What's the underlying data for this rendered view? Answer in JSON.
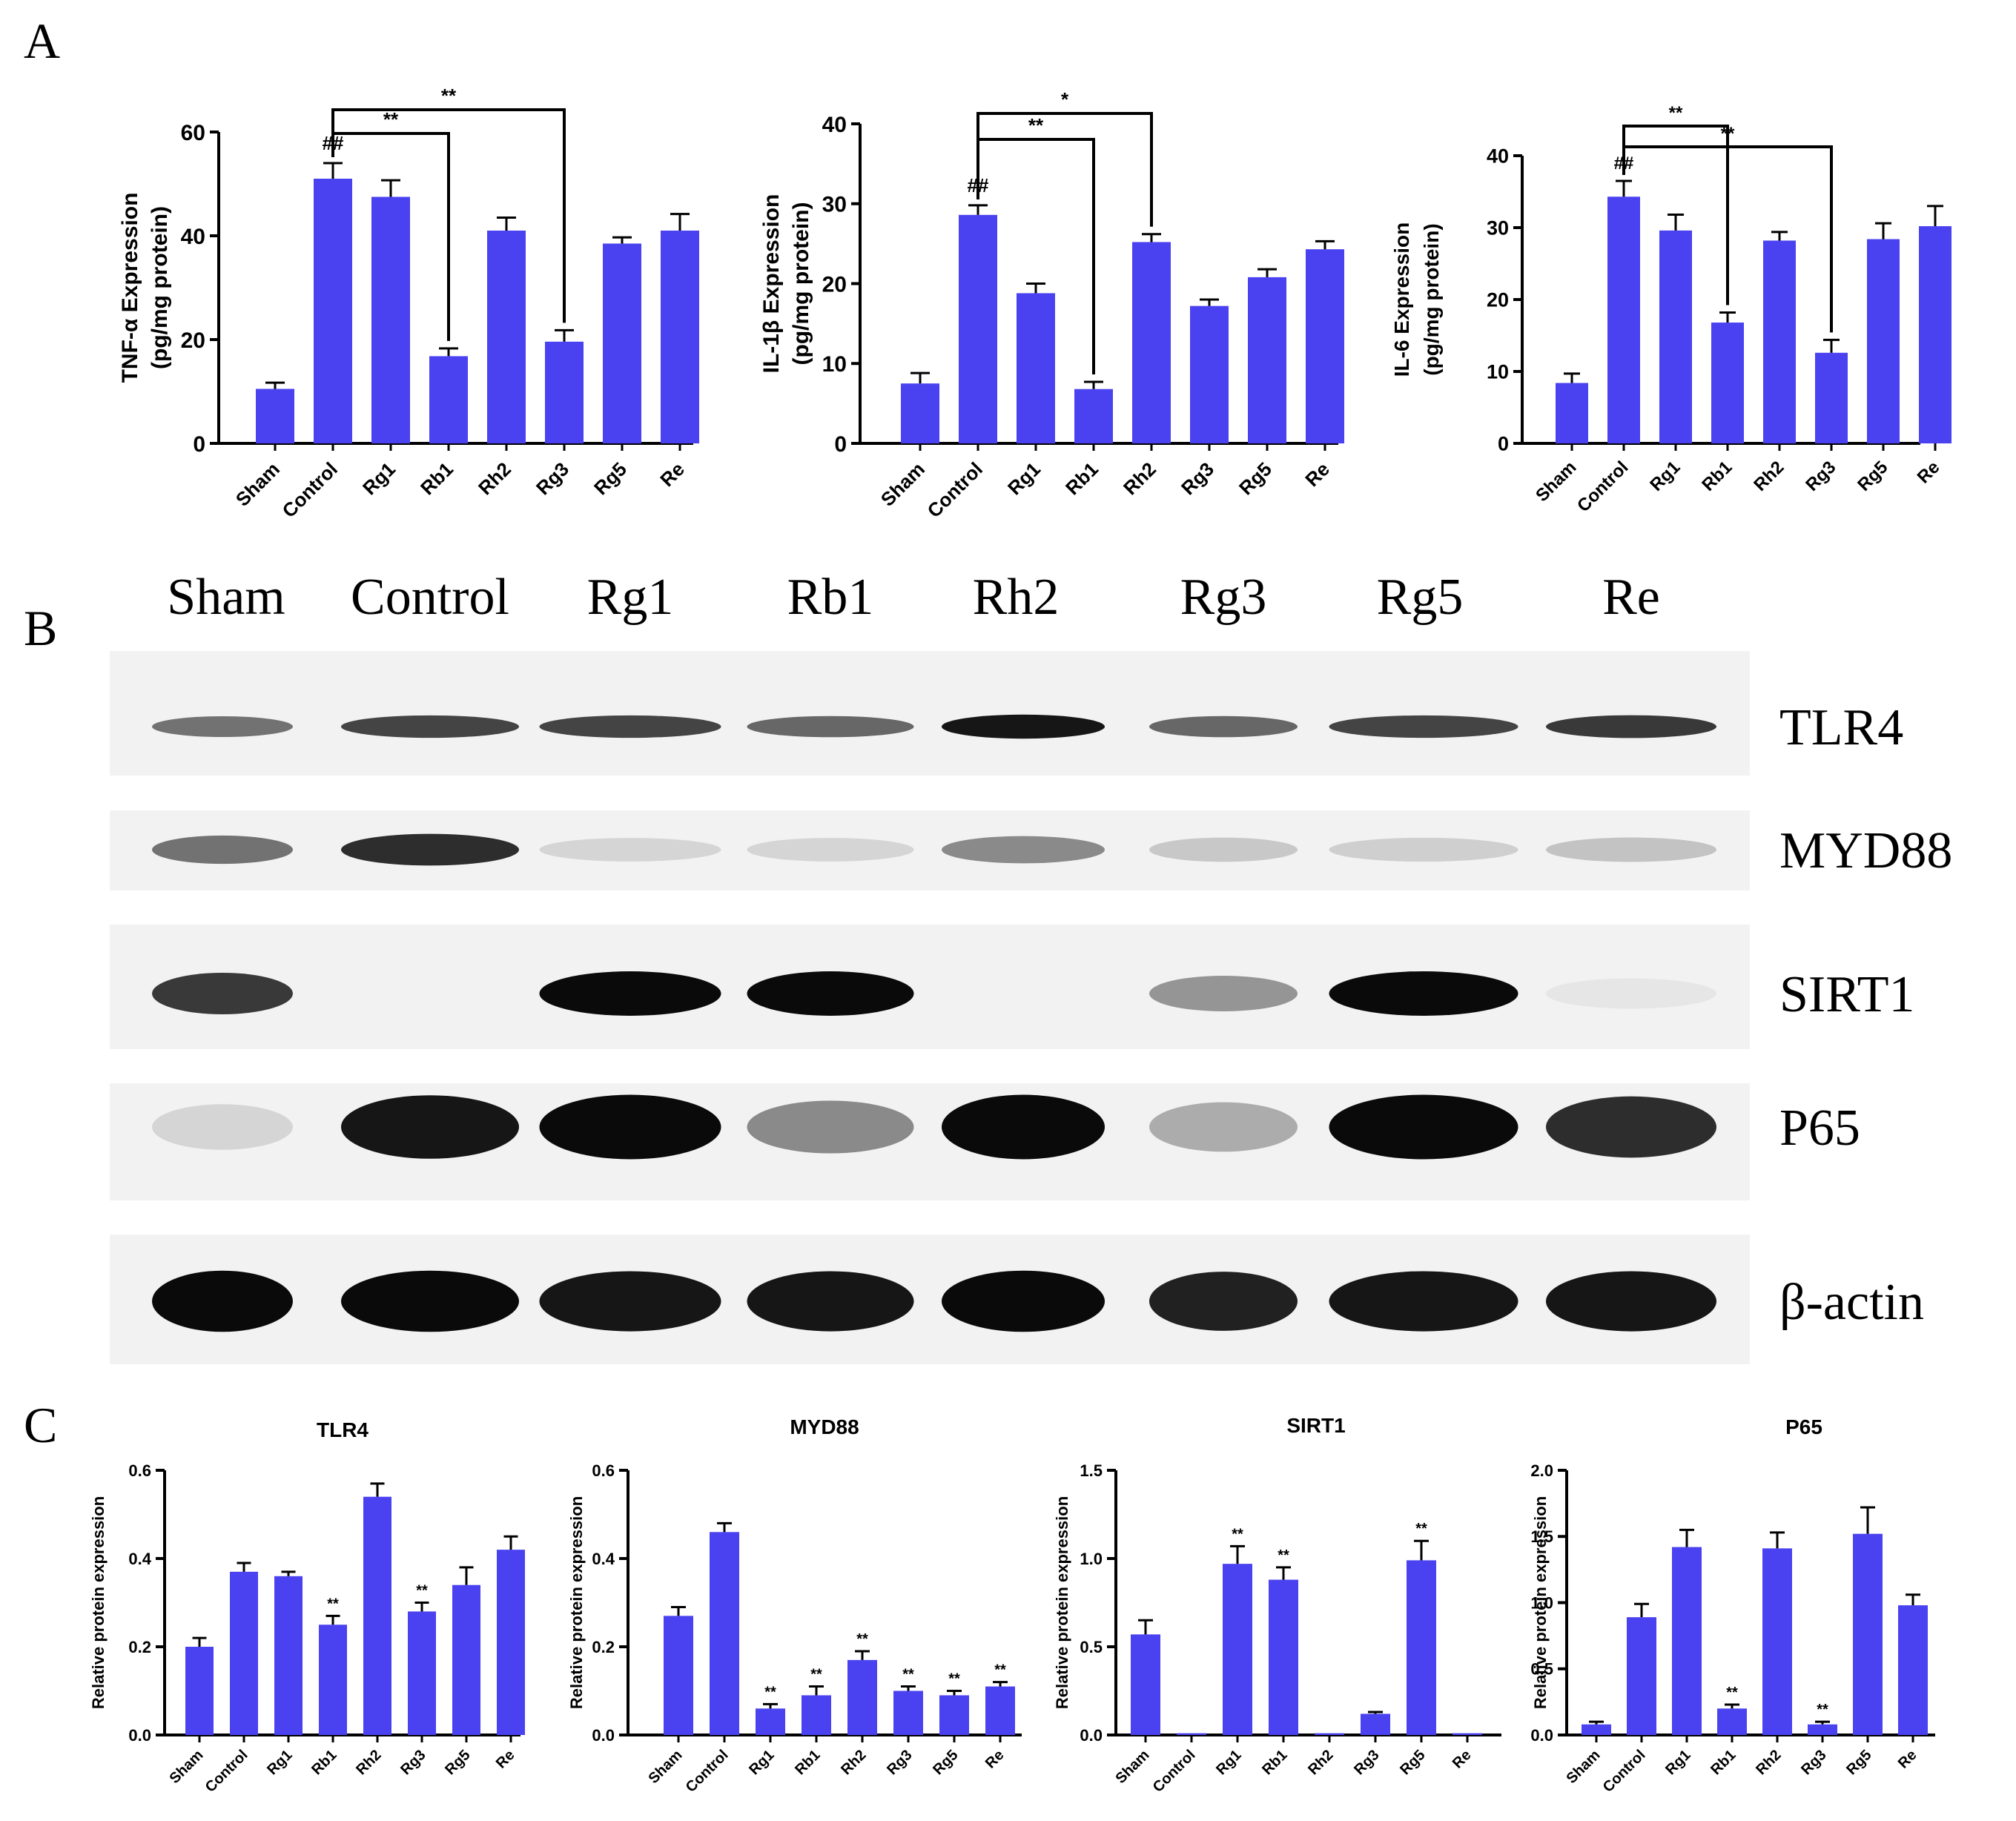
{
  "panels": {
    "a": "A",
    "b": "B",
    "c": "C"
  },
  "colors": {
    "bar": "#4a42f0",
    "axis": "#000000",
    "band": "#0a0a0a",
    "blot_bg": "#f2f2f2"
  },
  "chart_data": [
    {
      "id": "tnf",
      "type": "bar",
      "categories": [
        "Sham",
        "Control",
        "Rg1",
        "Rb1",
        "Rh2",
        "Rg3",
        "Rg5",
        "Re"
      ],
      "values": [
        10.5,
        51,
        47.5,
        16.8,
        41,
        19.6,
        38.5,
        41
      ],
      "errors": [
        1.2,
        3.0,
        3.2,
        1.5,
        2.5,
        2.2,
        1.2,
        3.2
      ],
      "ylabel": "TNF-α Expression",
      "ylabel2": "(pg/mg protein)",
      "ylim": [
        0,
        60
      ],
      "yticks": [
        0,
        20,
        40,
        60
      ],
      "marks": [
        {
          "index": 1,
          "text": "##"
        }
      ],
      "brackets": [
        {
          "from": 1,
          "to": 3,
          "text": "**"
        },
        {
          "from": 1,
          "to": 5,
          "text": "**"
        }
      ]
    },
    {
      "id": "il1b",
      "type": "bar",
      "categories": [
        "Sham",
        "Control",
        "Rg1",
        "Rb1",
        "Rh2",
        "Rg3",
        "Rg5",
        "Re"
      ],
      "values": [
        7.5,
        28.6,
        18.8,
        6.8,
        25.2,
        17.2,
        20.8,
        24.3
      ],
      "errors": [
        1.3,
        1.2,
        1.2,
        0.9,
        1.0,
        0.8,
        1.0,
        1.0
      ],
      "ylabel": "IL-1β Expression",
      "ylabel2": "(pg/mg protein)",
      "ylim": [
        0,
        40
      ],
      "yticks": [
        0,
        10,
        20,
        30,
        40
      ],
      "marks": [
        {
          "index": 1,
          "text": "##"
        }
      ],
      "brackets": [
        {
          "from": 1,
          "to": 3,
          "text": "**"
        },
        {
          "from": 1,
          "to": 4,
          "text": "*"
        }
      ]
    },
    {
      "id": "il6",
      "type": "bar",
      "categories": [
        "Sham",
        "Control",
        "Rg1",
        "Rb1",
        "Rh2",
        "Rg3",
        "Rg5",
        "Re"
      ],
      "values": [
        8.4,
        34.3,
        29.6,
        16.8,
        28.2,
        12.6,
        28.4,
        30.2
      ],
      "errors": [
        1.3,
        2.2,
        2.2,
        1.4,
        1.2,
        1.8,
        2.2,
        2.8
      ],
      "ylabel": "IL-6 Expression",
      "ylabel2": "(pg/mg protein)",
      "ylim": [
        0,
        40
      ],
      "yticks": [
        0,
        10,
        20,
        30,
        40
      ],
      "marks": [
        {
          "index": 1,
          "text": "##"
        }
      ],
      "brackets": [
        {
          "from": 1,
          "to": 3,
          "text": "**"
        },
        {
          "from": 1,
          "to": 5,
          "text": "**"
        }
      ]
    },
    {
      "id": "c_tlr4",
      "type": "bar",
      "title": "TLR4",
      "categories": [
        "Sham",
        "Control",
        "Rg1",
        "Rb1",
        "Rh2",
        "Rg3",
        "Rg5",
        "Re"
      ],
      "values": [
        0.2,
        0.37,
        0.36,
        0.25,
        0.54,
        0.28,
        0.34,
        0.42
      ],
      "errors": [
        0.02,
        0.02,
        0.01,
        0.02,
        0.03,
        0.02,
        0.04,
        0.03
      ],
      "ylabel": "Relative protein expression",
      "ylim": [
        0,
        0.6
      ],
      "yticks": [
        "0.0",
        "0.2",
        "0.4",
        "0.6"
      ],
      "marks": [
        {
          "index": 3,
          "text": "**"
        },
        {
          "index": 5,
          "text": "**"
        }
      ]
    },
    {
      "id": "c_myd88",
      "type": "bar",
      "title": "MYD88",
      "categories": [
        "Sham",
        "Control",
        "Rg1",
        "Rb1",
        "Rh2",
        "Rg3",
        "Rg5",
        "Re"
      ],
      "values": [
        0.27,
        0.46,
        0.06,
        0.09,
        0.17,
        0.1,
        0.09,
        0.11
      ],
      "errors": [
        0.02,
        0.02,
        0.01,
        0.02,
        0.02,
        0.01,
        0.01,
        0.01
      ],
      "ylabel": "Relative protein expression",
      "ylim": [
        0,
        0.6
      ],
      "yticks": [
        "0.0",
        "0.2",
        "0.4",
        "0.6"
      ],
      "marks": [
        {
          "index": 2,
          "text": "**"
        },
        {
          "index": 3,
          "text": "**"
        },
        {
          "index": 4,
          "text": "**"
        },
        {
          "index": 5,
          "text": "**"
        },
        {
          "index": 6,
          "text": "**"
        },
        {
          "index": 7,
          "text": "**"
        }
      ]
    },
    {
      "id": "c_sirt1",
      "type": "bar",
      "title": "SIRT1",
      "categories": [
        "Sham",
        "Control",
        "Rg1",
        "Rb1",
        "Rh2",
        "Rg3",
        "Rg5",
        "Re"
      ],
      "values": [
        0.57,
        0.01,
        0.97,
        0.88,
        0.01,
        0.12,
        0.99,
        0.01
      ],
      "errors": [
        0.08,
        0.0,
        0.1,
        0.07,
        0.0,
        0.01,
        0.11,
        0.0
      ],
      "ylabel": "Relative protein expression",
      "ylim": [
        0,
        1.5
      ],
      "yticks": [
        "0.0",
        "0.5",
        "1.0",
        "1.5"
      ],
      "marks": [
        {
          "index": 2,
          "text": "**"
        },
        {
          "index": 3,
          "text": "**"
        },
        {
          "index": 6,
          "text": "**"
        }
      ]
    },
    {
      "id": "c_p65",
      "type": "bar",
      "title": "P65",
      "categories": [
        "Sham",
        "Control",
        "Rg1",
        "Rb1",
        "Rh2",
        "Rg3",
        "Rg5",
        "Re"
      ],
      "values": [
        0.08,
        0.89,
        1.42,
        0.2,
        1.41,
        0.08,
        1.52,
        0.98
      ],
      "errors": [
        0.02,
        0.1,
        0.13,
        0.03,
        0.12,
        0.02,
        0.2,
        0.08
      ],
      "ylabel": "Relative protein expression",
      "ylim": [
        0,
        2.0
      ],
      "yticks": [
        "0.0",
        "0.5",
        "1.0",
        "1.5",
        "2.0"
      ],
      "marks": [
        {
          "index": 3,
          "text": "**"
        },
        {
          "index": 5,
          "text": "**"
        }
      ]
    }
  ],
  "blot": {
    "lanes": [
      "Sham",
      "Control",
      "Rg1",
      "Rb1",
      "Rh2",
      "Rg3",
      "Rg5",
      "Re"
    ],
    "rows": [
      {
        "protein": "TLR4",
        "intensity": [
          0.55,
          0.75,
          0.75,
          0.6,
          0.95,
          0.6,
          0.75,
          0.8
        ]
      },
      {
        "protein": "MYD88",
        "intensity": [
          0.55,
          0.85,
          0.12,
          0.12,
          0.45,
          0.18,
          0.15,
          0.2
        ]
      },
      {
        "protein": "SIRT1",
        "intensity": [
          0.8,
          0.0,
          1.0,
          1.0,
          0.0,
          0.4,
          1.0,
          0.05
        ]
      },
      {
        "protein": "P65",
        "intensity": [
          0.12,
          0.95,
          1.0,
          0.45,
          1.0,
          0.3,
          1.0,
          0.85
        ]
      },
      {
        "protein": "β-actin",
        "intensity": [
          1.0,
          1.0,
          0.95,
          0.95,
          1.0,
          0.9,
          0.95,
          0.95
        ]
      }
    ]
  }
}
